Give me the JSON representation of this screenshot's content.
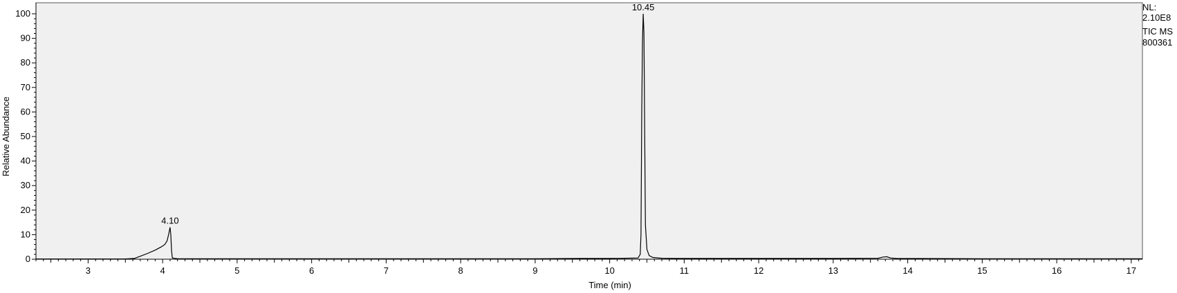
{
  "chart_data": {
    "type": "line",
    "title": "",
    "xlabel": "Time (min)",
    "ylabel": "Relative Abundance",
    "xlim": [
      2.3,
      17.15
    ],
    "ylim": [
      0,
      100
    ],
    "x_ticks": [
      3,
      4,
      5,
      6,
      7,
      8,
      9,
      10,
      11,
      12,
      13,
      14,
      15,
      16,
      17
    ],
    "y_ticks": [
      0,
      10,
      20,
      30,
      40,
      50,
      60,
      70,
      80,
      90,
      100
    ],
    "grid": false,
    "background": "#f0f0f0",
    "line_color": "#000000",
    "series": [
      {
        "x": [
          2.3,
          3.0,
          3.5,
          3.62,
          3.7,
          3.8,
          3.9,
          3.98,
          4.03,
          4.06,
          4.08,
          4.1,
          4.11,
          4.12,
          4.13,
          4.2,
          5.0,
          6.0,
          7.0,
          8.0,
          9.0,
          9.6,
          10.0,
          10.2,
          10.38,
          10.41,
          10.42,
          10.43,
          10.44,
          10.45,
          10.46,
          10.47,
          10.48,
          10.5,
          10.53,
          10.58,
          10.7,
          10.9,
          12.0,
          13.0,
          13.6,
          13.67,
          13.72,
          13.77,
          13.85,
          15.0,
          16.0,
          17.15
        ],
        "y": [
          0.1,
          0.1,
          0.1,
          0.3,
          1.2,
          2.4,
          3.7,
          5.0,
          6.0,
          7.5,
          10.0,
          13.0,
          10.0,
          3.5,
          0.5,
          0.2,
          0.2,
          0.2,
          0.2,
          0.2,
          0.2,
          0.3,
          0.3,
          0.4,
          0.5,
          2.0,
          10.0,
          60.0,
          88.0,
          100.0,
          92.0,
          50.0,
          14.0,
          4.0,
          1.5,
          0.7,
          0.4,
          0.3,
          0.3,
          0.3,
          0.4,
          0.9,
          1.0,
          0.5,
          0.3,
          0.2,
          0.2,
          0.2
        ]
      }
    ],
    "peak_labels": [
      {
        "text": "4.10",
        "x": 4.1,
        "y": 13.0
      },
      {
        "text": "10.45",
        "x": 10.45,
        "y": 100.0
      }
    ]
  },
  "info": {
    "nl_label": "NL:",
    "nl_value": "2.10E8",
    "trace": "TIC  MS",
    "sample": "800361"
  }
}
